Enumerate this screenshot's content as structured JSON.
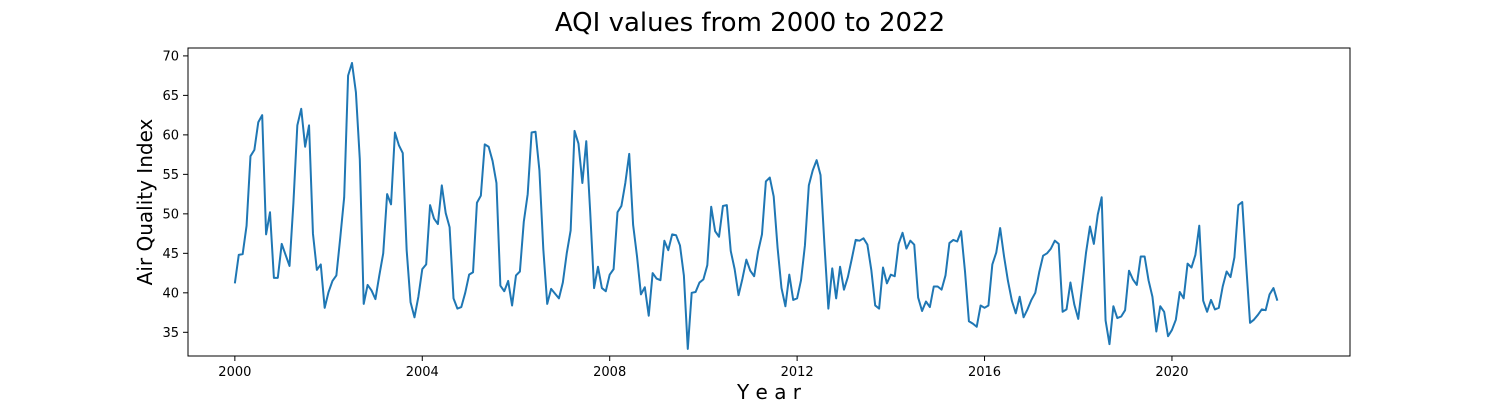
{
  "chart_data": {
    "type": "line",
    "title": "AQI values from 2000 to 2022",
    "xlabel": "Y e a r",
    "ylabel": "Air Quality Index",
    "x_start_year": 2000,
    "x_step_months": 1,
    "xlim": [
      1999.0,
      2023.8
    ],
    "ylim": [
      32.0,
      71.0
    ],
    "xticks": [
      2000,
      2004,
      2008,
      2012,
      2016,
      2020
    ],
    "xtick_labels": [
      "2000",
      "2004",
      "2008",
      "2012",
      "2016",
      "2020"
    ],
    "yticks": [
      35,
      40,
      45,
      50,
      55,
      60,
      65,
      70
    ],
    "ytick_labels": [
      "35",
      "40",
      "45",
      "50",
      "55",
      "60",
      "65",
      "70"
    ],
    "grid": false,
    "series": [
      {
        "color": "#1f77b4",
        "values": [
          41.2,
          44.8,
          44.9,
          48.5,
          57.3,
          58.1,
          61.6,
          62.5,
          47.4,
          50.2,
          41.9,
          41.9,
          46.2,
          44.8,
          43.4,
          51.4,
          61.2,
          63.3,
          58.5,
          61.2,
          47.5,
          42.9,
          43.6,
          38.1,
          40.1,
          41.5,
          42.2,
          47.0,
          52.1,
          67.5,
          69.1,
          65.4,
          56.9,
          38.6,
          41.0,
          40.3,
          39.2,
          42.2,
          45.0,
          52.5,
          51.2,
          60.3,
          58.7,
          57.7,
          45.4,
          38.8,
          36.9,
          39.5,
          43.0,
          43.6,
          51.1,
          49.4,
          48.7,
          53.6,
          50.1,
          48.3,
          39.3,
          38.0,
          38.2,
          40.0,
          42.3,
          42.6,
          51.4,
          52.3,
          58.8,
          58.5,
          56.7,
          53.9,
          40.9,
          40.2,
          41.5,
          38.4,
          42.2,
          42.7,
          49.0,
          52.5,
          60.3,
          60.4,
          55.5,
          45.5,
          38.6,
          40.5,
          39.9,
          39.3,
          41.3,
          45.0,
          47.9,
          60.5,
          58.9,
          53.9,
          59.2,
          50.3,
          40.6,
          43.3,
          40.6,
          40.2,
          42.3,
          43.0,
          50.2,
          51.0,
          53.9,
          57.6,
          48.6,
          44.6,
          39.8,
          40.7,
          37.1,
          42.5,
          41.8,
          41.6,
          46.6,
          45.4,
          47.4,
          47.3,
          46.0,
          42.2,
          32.9,
          40.0,
          40.1,
          41.3,
          41.7,
          43.5,
          50.9,
          47.8,
          47.1,
          51.0,
          51.1,
          45.3,
          43.0,
          39.7,
          41.8,
          44.2,
          42.8,
          42.1,
          45.2,
          47.4,
          54.1,
          54.6,
          52.2,
          45.7,
          40.6,
          38.3,
          42.3,
          39.1,
          39.3,
          41.6,
          46.0,
          53.6,
          55.5,
          56.8,
          54.9,
          46.1,
          38.0,
          43.1,
          39.3,
          43.3,
          40.4,
          42.0,
          44.3,
          46.7,
          46.6,
          46.9,
          46.1,
          42.9,
          38.4,
          38.0,
          43.2,
          41.2,
          42.3,
          42.1,
          46.2,
          47.6,
          45.6,
          46.6,
          46.1,
          39.4,
          37.7,
          38.9,
          38.2,
          40.8,
          40.8,
          40.4,
          42.2,
          46.3,
          46.7,
          46.5,
          47.8,
          42.7,
          36.4,
          36.1,
          35.7,
          38.4,
          38.1,
          38.4,
          43.6,
          45.1,
          48.2,
          44.6,
          41.5,
          39.0,
          37.4,
          39.5,
          36.9,
          37.9,
          39.1,
          40.0,
          42.6,
          44.7,
          45.0,
          45.6,
          46.6,
          46.2,
          37.6,
          37.9,
          41.3,
          38.5,
          36.7,
          40.9,
          45.1,
          48.4,
          46.2,
          49.9,
          52.1,
          36.5,
          33.5,
          38.3,
          36.8,
          37.0,
          37.8,
          42.8,
          41.7,
          41.0,
          44.6,
          44.6,
          41.6,
          39.5,
          35.1,
          38.3,
          37.6,
          34.5,
          35.3,
          36.6,
          40.1,
          39.3,
          43.7,
          43.2,
          44.8,
          48.5,
          39.0,
          37.6,
          39.1,
          37.9,
          38.1,
          40.8,
          42.7,
          42.0,
          44.5,
          51.1,
          51.5,
          43.6,
          36.2,
          36.6,
          37.2,
          37.9,
          37.8,
          39.8,
          40.6,
          39.0
        ]
      }
    ]
  }
}
